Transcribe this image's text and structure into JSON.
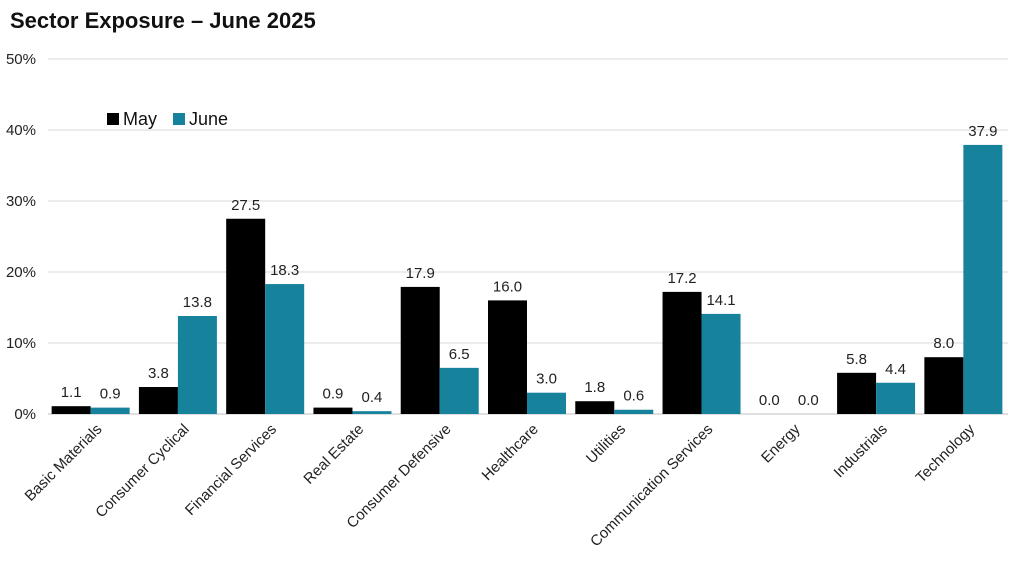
{
  "chart_data": {
    "type": "bar",
    "title": "Sector Exposure – June 2025",
    "categories": [
      "Basic Materials",
      "Consumer Cyclical",
      "Financial Services",
      "Real Estate",
      "Consumer Defensive",
      "Healthcare",
      "Utilities",
      "Communication Services",
      "Energy",
      "Industrials",
      "Technology"
    ],
    "series": [
      {
        "name": "May",
        "color": "#000000",
        "values": [
          1.1,
          3.8,
          27.5,
          0.9,
          17.9,
          16.0,
          1.8,
          17.2,
          0.0,
          5.8,
          8.0
        ]
      },
      {
        "name": "June",
        "color": "#17829b",
        "values": [
          0.9,
          13.8,
          18.3,
          0.4,
          6.5,
          3.0,
          0.6,
          14.1,
          0.0,
          4.4,
          37.9
        ]
      }
    ],
    "ylim": [
      0,
      50
    ],
    "yticks": [
      "0%",
      "10%",
      "20%",
      "30%",
      "40%",
      "50%"
    ],
    "grid": true,
    "legend_position": "top-left"
  }
}
